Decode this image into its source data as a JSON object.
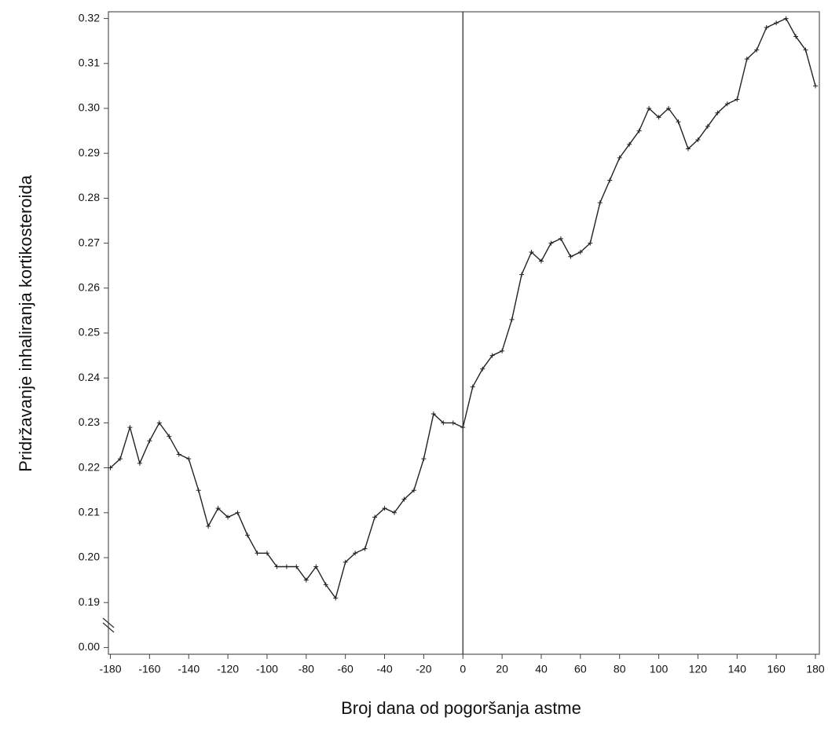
{
  "chart_data": {
    "type": "line",
    "x_label": "Broj dana od pogoršanja astme",
    "y_label": "Pridržavanje inhaliranja kortikosteroida",
    "x": [
      -180,
      -175,
      -170,
      -165,
      -160,
      -155,
      -150,
      -145,
      -140,
      -135,
      -130,
      -125,
      -120,
      -115,
      -110,
      -105,
      -100,
      -95,
      -90,
      -85,
      -80,
      -75,
      -70,
      -65,
      -60,
      -55,
      -50,
      -45,
      -40,
      -35,
      -30,
      -25,
      -20,
      -15,
      -10,
      -5,
      0,
      5,
      10,
      15,
      20,
      25,
      30,
      35,
      40,
      45,
      50,
      55,
      60,
      65,
      70,
      75,
      80,
      85,
      90,
      95,
      100,
      105,
      110,
      115,
      120,
      125,
      130,
      135,
      140,
      145,
      150,
      155,
      160,
      165,
      170,
      175,
      180
    ],
    "series": [
      {
        "color": "#222222",
        "values": [
          0.22,
          0.222,
          0.229,
          0.221,
          0.226,
          0.23,
          0.227,
          0.223,
          0.222,
          0.215,
          0.207,
          0.211,
          0.209,
          0.21,
          0.205,
          0.201,
          0.201,
          0.198,
          0.198,
          0.198,
          0.195,
          0.198,
          0.194,
          0.191,
          0.199,
          0.201,
          0.202,
          0.209,
          0.211,
          0.21,
          0.213,
          0.215,
          0.222,
          0.232,
          0.23,
          0.23,
          0.229,
          0.238,
          0.242,
          0.245,
          0.246,
          0.253,
          0.263,
          0.268,
          0.266,
          0.27,
          0.271,
          0.267,
          0.268,
          0.27,
          0.279,
          0.284,
          0.289,
          0.292,
          0.295,
          0.3,
          0.298,
          0.3,
          0.297,
          0.291,
          0.293,
          0.296,
          0.299,
          0.301,
          0.302,
          0.311,
          0.313,
          0.318,
          0.319,
          0.32,
          0.316,
          0.313,
          0.305
        ]
      }
    ],
    "xlim": [
      -181,
      182
    ],
    "xticks": [
      -180,
      -160,
      -140,
      -120,
      -100,
      -80,
      -60,
      -40,
      -20,
      0,
      20,
      40,
      60,
      80,
      100,
      120,
      140,
      160,
      180
    ],
    "ylim": [
      -0.0015,
      0.3215
    ],
    "y_break": [
      0,
      0.18
    ],
    "yticks": [
      {
        "value": 0,
        "label": "0.00"
      },
      0.19,
      {
        "value": 0.2,
        "label": "0.20"
      },
      0.21,
      0.22,
      0.23,
      0.24,
      0.25,
      0.26,
      0.27,
      0.28,
      0.29,
      {
        "value": 0.3,
        "label": "0.30"
      },
      0.31,
      0.32
    ],
    "vline": 0,
    "markers": true
  }
}
